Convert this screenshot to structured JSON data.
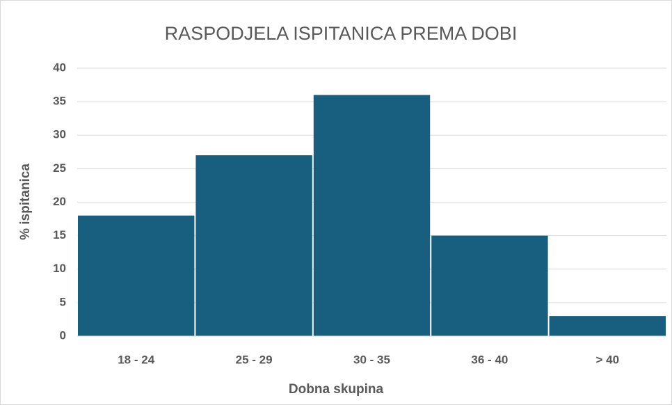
{
  "chart_data": {
    "type": "bar",
    "title": "RASPODJELA ISPITANICA PREMA DOBI",
    "x_label": "Dobna skupina",
    "y_label": "% ispitanica",
    "categories": [
      "18 - 24",
      "25 - 29",
      "30 - 35",
      "36 - 40",
      "> 40"
    ],
    "values": [
      18,
      27,
      36,
      15,
      3
    ],
    "color": "#175e7f",
    "ylim": [
      0,
      40
    ],
    "yticks": [
      0,
      5,
      10,
      15,
      20,
      25,
      30,
      35,
      40
    ],
    "grid": true
  }
}
